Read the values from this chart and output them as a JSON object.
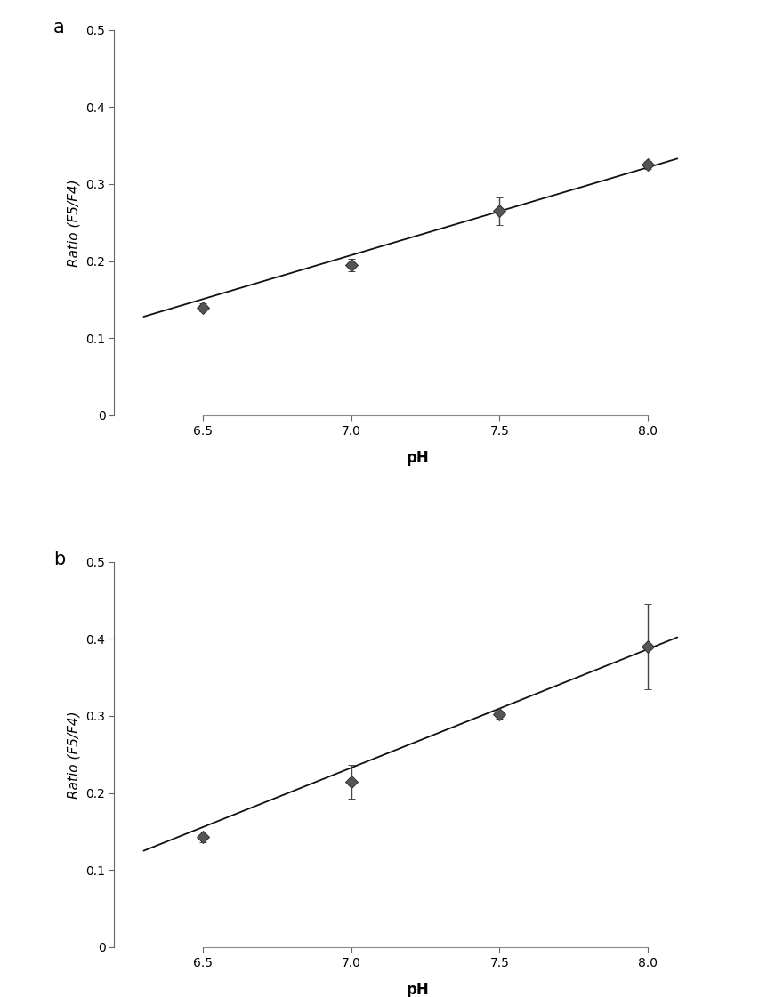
{
  "panel_a": {
    "x": [
      6.5,
      7.0,
      7.5,
      8.0
    ],
    "y": [
      0.14,
      0.195,
      0.265,
      0.325
    ],
    "yerr": [
      0.005,
      0.008,
      0.018,
      0.005
    ],
    "fit_x": [
      6.3,
      8.1
    ],
    "fit_y": [
      0.128,
      0.333
    ],
    "label": "a"
  },
  "panel_b": {
    "x": [
      6.5,
      7.0,
      7.5,
      8.0
    ],
    "y": [
      0.143,
      0.215,
      0.302,
      0.39
    ],
    "yerr": [
      0.007,
      0.022,
      0.005,
      0.055
    ],
    "fit_x": [
      6.3,
      8.1
    ],
    "fit_y": [
      0.125,
      0.402
    ],
    "label": "b"
  },
  "xlabel": "pH",
  "ylabel": "Ratio (F5/F4)",
  "ylim": [
    0,
    0.5
  ],
  "yticks": [
    0,
    0.1,
    0.2,
    0.3,
    0.4,
    0.5
  ],
  "xticks": [
    6.5,
    7.0,
    7.5,
    8.0
  ],
  "xlim": [
    6.2,
    8.25
  ],
  "marker_color": "#555555",
  "line_color": "#111111",
  "marker_size": 7,
  "marker_style": "D",
  "capsize": 3,
  "elinewidth": 1.0,
  "ecolor": "#444444",
  "linewidth": 1.3,
  "xlabel_fontsize": 12,
  "ylabel_fontsize": 11,
  "tick_fontsize": 10,
  "panel_label_fontsize": 15
}
